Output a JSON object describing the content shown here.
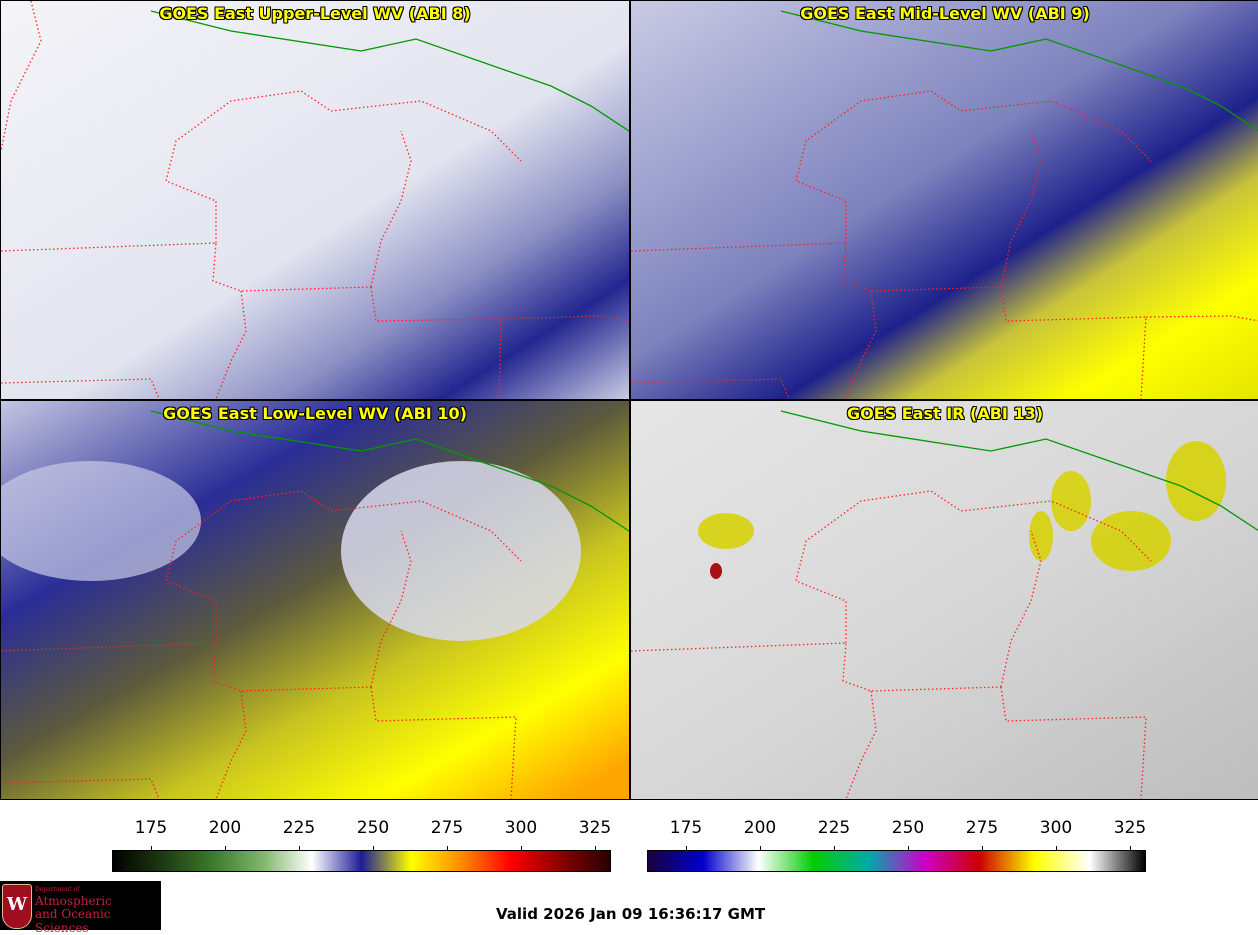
{
  "panels": [
    {
      "title": "GOES East Upper-Level WV (ABI 8)",
      "style": "wv-upper"
    },
    {
      "title": "GOES East Mid-Level WV (ABI 9)",
      "style": "wv-mid"
    },
    {
      "title": "GOES East Low-Level WV (ABI 10)",
      "style": "wv-low"
    },
    {
      "title": "GOES East IR (ABI 13)",
      "style": "ir"
    }
  ],
  "colorbars": {
    "wv": {
      "ticks": [
        "175",
        "200",
        "225",
        "250",
        "275",
        "300",
        "325"
      ],
      "colors": [
        "#000000",
        "#1e3a12",
        "#3a7a2a",
        "#7fb56a",
        "#ffffff",
        "#1c1c9a",
        "#ffff00",
        "#ff8c00",
        "#ff0000",
        "#8b0000",
        "#2a0000"
      ]
    },
    "ir": {
      "ticks": [
        "175",
        "200",
        "225",
        "250",
        "275",
        "300",
        "325"
      ],
      "colors": [
        "#1a0040",
        "#0000cc",
        "#ffffff",
        "#00cc00",
        "#00aaaa",
        "#cc00cc",
        "#cc0000",
        "#ffff00",
        "#ffffff",
        "#000000"
      ]
    }
  },
  "logo": {
    "line1": "Department of",
    "line2": "Atmospheric",
    "line3": "and Oceanic Sciences"
  },
  "valid_text": "Valid 2026 Jan 09 16:36:17 GMT",
  "colors": {
    "title_text": "#ffff00",
    "state_borders": "#ff2020",
    "intl_border": "#00aa00"
  }
}
